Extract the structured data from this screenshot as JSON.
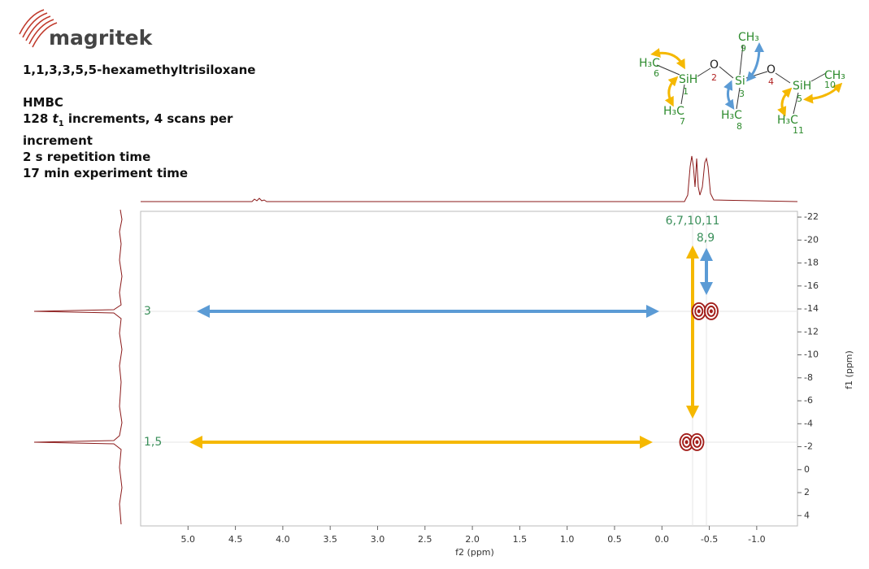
{
  "brand": "magritek",
  "compound": "1,1,3,3,5,5-hexamethyltrisiloxane",
  "experiment": {
    "technique": "HMBC",
    "increments": [
      "128 ",
      "t",
      "1",
      " increments, 4 scans per",
      "increment"
    ],
    "repetition": "2 s repetition time",
    "duration": "17 min experiment time"
  },
  "structure": {
    "atoms": [
      "H₃C",
      "SiH",
      "H₃C",
      "O",
      "CH₃",
      "Si",
      "H₃C",
      "O",
      "SiH",
      "CH₃",
      "H₃C"
    ],
    "numbers": [
      "6",
      "1",
      "7",
      "2",
      "9",
      "3",
      "8",
      "4",
      "5",
      "10",
      "11"
    ]
  },
  "chart_data": {
    "type": "hmbc",
    "xlabel": "f2 (ppm)",
    "ylabel": "f1 (ppm)",
    "xlim": [
      5.5,
      -1.43
    ],
    "ylim": [
      -22.5,
      4.9
    ],
    "xticks": [
      {
        "value": 5,
        "label": "5.0"
      },
      4.5,
      {
        "value": 4,
        "label": "4.0"
      },
      3.5,
      {
        "value": 3,
        "label": "3.0"
      },
      2.5,
      {
        "value": 2,
        "label": "2.0"
      },
      1.5,
      {
        "value": 1,
        "label": "1.0"
      },
      0.5,
      {
        "value": 0,
        "label": "0.0"
      },
      -0.5,
      {
        "value": -1,
        "label": "-1.0"
      }
    ],
    "yticks": [
      -22,
      -20,
      -18,
      -16,
      -14,
      -12,
      -10,
      -8,
      -6,
      -4,
      -2,
      0,
      2,
      4
    ],
    "peaks": {
      "color": "#a3201c",
      "f2": [
        -0.39,
        -0.52,
        -0.26,
        -0.37
      ],
      "f1": [
        -13.8,
        -13.8,
        -2.4,
        -2.4
      ]
    },
    "row_labels": [
      "3",
      "1,5"
    ],
    "column_labels": [
      "6,7,10,11",
      "8,9"
    ]
  }
}
